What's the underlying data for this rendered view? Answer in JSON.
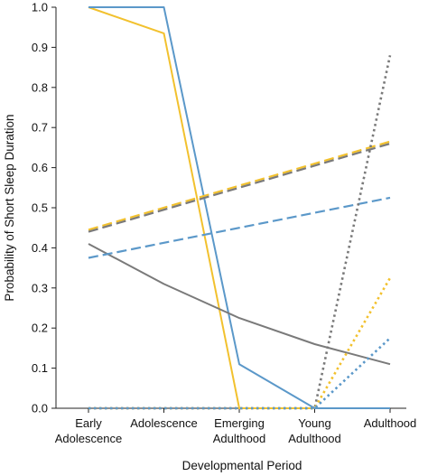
{
  "chart_data": {
    "type": "line",
    "title": "",
    "xlabel": "Developmental Period",
    "ylabel": "Probability of Short Sleep Duration",
    "categories": [
      [
        "Early",
        "Adolescence"
      ],
      [
        "Adolescence"
      ],
      [
        "Emerging",
        "Adulthood"
      ],
      [
        "Young",
        "Adulthood"
      ],
      [
        "Adulthood"
      ]
    ],
    "ylim": [
      0,
      1.0
    ],
    "yticks": [
      "0.0",
      "0.1",
      "0.2",
      "0.3",
      "0.4",
      "0.5",
      "0.6",
      "0.7",
      "0.8",
      "0.9",
      "1.0"
    ],
    "grid": false,
    "legend": "none",
    "series": [
      {
        "color": "#f2c12e",
        "style": "solid",
        "points": [
          [
            0,
            1.0
          ],
          [
            1,
            0.935
          ],
          [
            2,
            0.0
          ],
          [
            3,
            0.0
          ],
          [
            4,
            0.0
          ]
        ]
      },
      {
        "color": "#5b98c9",
        "style": "solid",
        "points": [
          [
            0,
            1.0
          ],
          [
            1,
            1.0
          ],
          [
            2,
            0.11
          ],
          [
            3,
            0.0
          ],
          [
            4,
            0.0
          ]
        ]
      },
      {
        "color": "#7a7a7a",
        "style": "solid",
        "points": [
          [
            0,
            0.41
          ],
          [
            1,
            0.31
          ],
          [
            2,
            0.225
          ],
          [
            3,
            0.16
          ],
          [
            4,
            0.11
          ]
        ]
      },
      {
        "color": "#f2c12e",
        "style": "dashed",
        "points": [
          [
            0,
            0.445
          ],
          [
            4,
            0.665
          ]
        ]
      },
      {
        "color": "#7a7a7a",
        "style": "dashed",
        "points": [
          [
            0,
            0.44
          ],
          [
            4,
            0.66
          ]
        ]
      },
      {
        "color": "#5b98c9",
        "style": "dashed",
        "points": [
          [
            0,
            0.375
          ],
          [
            4,
            0.525
          ]
        ]
      },
      {
        "color": "#7a7a7a",
        "style": "dotted",
        "points": [
          [
            0,
            0.0
          ],
          [
            3,
            0.0
          ],
          [
            4,
            0.88
          ]
        ]
      },
      {
        "color": "#f2c12e",
        "style": "dotted",
        "points": [
          [
            0,
            0.0
          ],
          [
            3,
            0.0
          ],
          [
            4,
            0.325
          ]
        ]
      },
      {
        "color": "#5b98c9",
        "style": "dotted",
        "points": [
          [
            0,
            0.0
          ],
          [
            3,
            0.0
          ],
          [
            4,
            0.175
          ]
        ]
      }
    ]
  }
}
